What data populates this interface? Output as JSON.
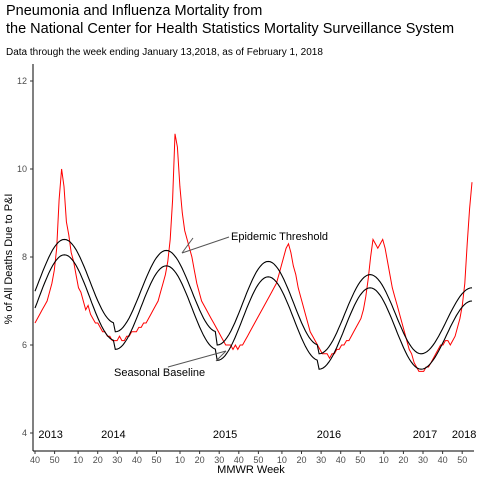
{
  "chart_data": {
    "type": "line",
    "title_line1": "Pneumonia and Influenza Mortality from",
    "title_line2": "the National Center for Health Statistics Mortality Surveillance System",
    "subtitle": "Data through the week ending January 13,2018, as of February 1, 2018",
    "xlabel": "MMWR Week",
    "ylabel": "% of All Deaths Due to P&I",
    "ylim": [
      4,
      12
    ],
    "y_ticks": [
      "4",
      "6",
      "8",
      "10",
      "12"
    ],
    "x_tick_labels": [
      "40",
      "50",
      "10",
      "20",
      "30",
      "40",
      "50",
      "10",
      "20",
      "30",
      "40",
      "50",
      "10",
      "20",
      "30",
      "40",
      "50",
      "10",
      "20",
      "30",
      "40",
      "50",
      "10",
      "20",
      "30",
      "40",
      "50"
    ],
    "year_labels": [
      "2013",
      "2014",
      "2015",
      "2016",
      "2017",
      "2018"
    ],
    "grid": false,
    "annotations": {
      "epidemic_threshold": "Epidemic Threshold",
      "seasonal_baseline": "Seasonal Baseline"
    },
    "colors": {
      "observed": "#ff0000",
      "baseline": "#000000",
      "threshold": "#000000"
    },
    "series": [
      {
        "values_comment": "weekly observed P&I % (week index from week 40 of 2013)",
        "values": [
          6.5,
          6.6,
          6.7,
          6.8,
          6.9,
          7.0,
          7.2,
          7.4,
          7.7,
          8.2,
          9.3,
          10.0,
          9.6,
          8.8,
          8.5,
          8.1,
          7.9,
          7.6,
          7.3,
          7.2,
          7.0,
          6.8,
          6.9,
          6.7,
          6.6,
          6.5,
          6.5,
          6.4,
          6.3,
          6.3,
          6.2,
          6.2,
          6.1,
          6.1,
          6.1,
          6.2,
          6.1,
          6.1,
          6.2,
          6.2,
          6.3,
          6.3,
          6.3,
          6.4,
          6.4,
          6.5,
          6.5,
          6.6,
          6.7,
          6.8,
          6.9,
          7.0,
          7.2,
          7.4,
          7.6,
          7.9,
          8.4,
          9.3,
          10.8,
          10.5,
          9.6,
          9.0,
          8.6,
          8.4,
          8.2,
          8.0,
          7.7,
          7.4,
          7.2,
          7.0,
          6.9,
          6.8,
          6.7,
          6.6,
          6.5,
          6.4,
          6.3,
          6.2,
          6.1,
          6.0,
          6.0,
          6.0,
          5.9,
          6.0,
          5.9,
          6.0,
          6.0,
          6.1,
          6.2,
          6.3,
          6.4,
          6.5,
          6.6,
          6.7,
          6.8,
          6.9,
          7.0,
          7.1,
          7.2,
          7.3,
          7.4,
          7.6,
          7.8,
          8.0,
          8.2,
          8.3,
          8.1,
          7.8,
          7.6,
          7.3,
          7.1,
          6.9,
          6.7,
          6.5,
          6.3,
          6.2,
          6.1,
          6.0,
          5.9,
          5.8,
          5.8,
          5.8,
          5.7,
          5.8,
          5.8,
          5.9,
          5.9,
          6.0,
          6.0,
          6.1,
          6.1,
          6.2,
          6.3,
          6.4,
          6.5,
          6.6,
          6.8,
          7.1,
          7.5,
          8.0,
          8.4,
          8.3,
          8.2,
          8.3,
          8.4,
          8.2,
          7.9,
          7.6,
          7.3,
          7.1,
          6.9,
          6.7,
          6.5,
          6.3,
          6.1,
          5.9,
          5.8,
          5.6,
          5.5,
          5.4,
          5.4,
          5.4,
          5.5,
          5.5,
          5.6,
          5.7,
          5.8,
          5.9,
          6.0,
          6.0,
          6.1,
          6.1,
          6.0,
          6.1,
          6.2,
          6.4,
          6.6,
          6.9,
          7.4,
          8.3,
          9.1,
          9.7
        ]
      },
      {
        "name": "Epidemic Threshold",
        "values_comment": "sinusoidal threshold, peak ~8.3",
        "peaks": [
          8.4,
          8.15,
          7.9,
          7.6,
          7.3
        ],
        "troughs": [
          6.5,
          6.3,
          6.0,
          5.8
        ]
      },
      {
        "name": "Seasonal Baseline",
        "peaks": [
          8.05,
          7.8,
          7.55,
          7.3,
          7.0
        ],
        "troughs": [
          6.1,
          5.9,
          5.65,
          5.45
        ]
      }
    ]
  }
}
